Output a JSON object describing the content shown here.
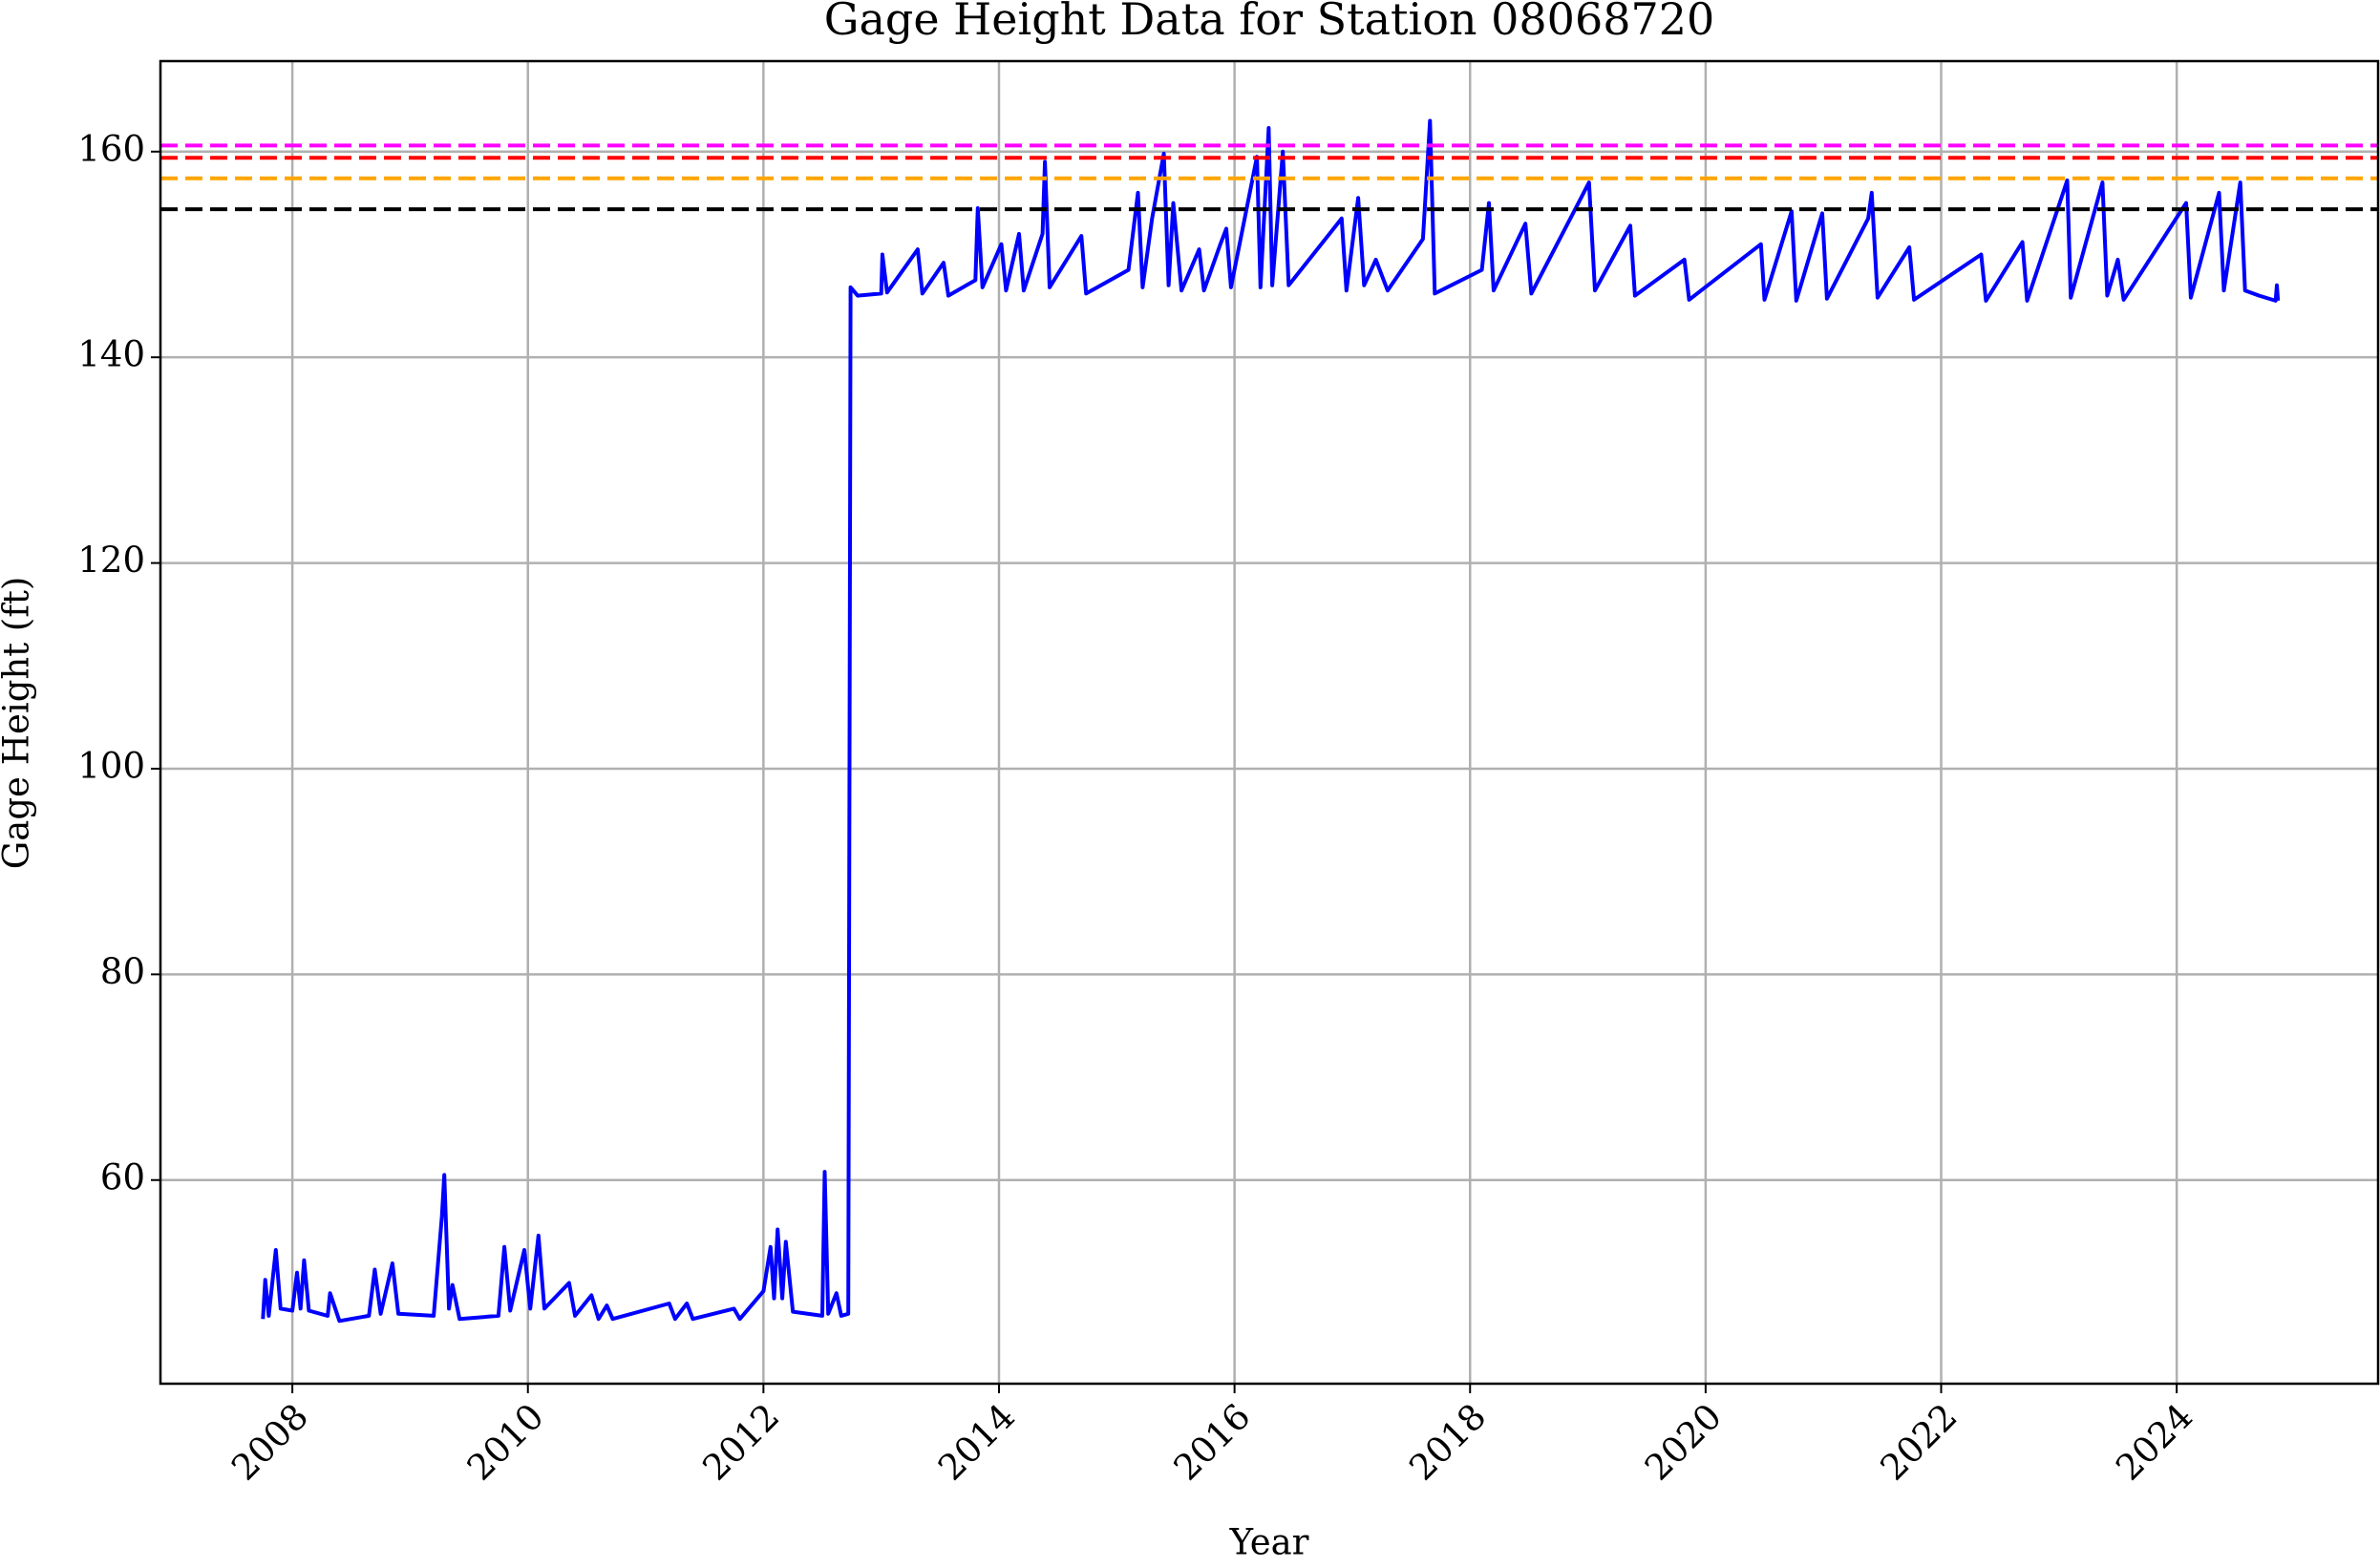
{
  "chart_data": {
    "type": "line",
    "title": "Gage Height Data for Station 08068720",
    "xlabel": "Year",
    "ylabel": "Gage Height (ft)",
    "x": [
      2007.75,
      2007.77,
      2007.8,
      2007.86,
      2007.9,
      2008.0,
      2008.04,
      2008.07,
      2008.1,
      2008.14,
      2008.3,
      2008.32,
      2008.4,
      2008.65,
      2008.7,
      2008.75,
      2008.85,
      2008.9,
      2009.2,
      2009.27,
      2009.29,
      2009.33,
      2009.36,
      2009.42,
      2009.75,
      2009.8,
      2009.85,
      2009.97,
      2010.02,
      2010.09,
      2010.14,
      2010.35,
      2010.4,
      2010.54,
      2010.6,
      2010.67,
      2010.72,
      2011.2,
      2011.25,
      2011.35,
      2011.4,
      2011.75,
      2011.8,
      2012.0,
      2012.06,
      2012.09,
      2012.12,
      2012.16,
      2012.19,
      2012.25,
      2012.5,
      2012.52,
      2012.55,
      2012.62,
      2012.66,
      2012.72,
      2012.74,
      2012.8,
      2013.0,
      2013.01,
      2013.05,
      2013.31,
      2013.35,
      2013.53,
      2013.57,
      2013.8,
      2013.82,
      2013.86,
      2014.02,
      2014.06,
      2014.17,
      2014.21,
      2014.37,
      2014.39,
      2014.43,
      2014.7,
      2014.74,
      2015.1,
      2015.18,
      2015.22,
      2015.3,
      2015.4,
      2015.44,
      2015.48,
      2015.55,
      2015.7,
      2015.74,
      2015.88,
      2015.93,
      2015.97,
      2016.19,
      2016.22,
      2016.29,
      2016.32,
      2016.41,
      2016.46,
      2016.91,
      2016.95,
      2017.05,
      2017.1,
      2017.2,
      2017.3,
      2017.6,
      2017.66,
      2017.7,
      2018.1,
      2018.16,
      2018.2,
      2018.47,
      2018.52,
      2018.92,
      2019.01,
      2019.06,
      2019.36,
      2019.4,
      2019.82,
      2019.86,
      2020.47,
      2020.5,
      2020.73,
      2020.77,
      2020.99,
      2021.03,
      2021.38,
      2021.41,
      2021.46,
      2021.73,
      2021.77,
      2022.34,
      2022.38,
      2022.69,
      2022.73,
      2023.07,
      2023.1,
      2023.37,
      2023.41,
      2023.5,
      2023.55,
      2024.08,
      2024.12,
      2024.36,
      2024.4,
      2024.54,
      2024.58,
      2024.7,
      2024.84,
      2024.85,
      2024.86
    ],
    "series": [
      {
        "color": "#0000ff",
        "values": [
          46.5,
          50.3,
          46.8,
          53.2,
          47.5,
          47.3,
          51.0,
          47.5,
          52.2,
          47.3,
          46.8,
          49.0,
          46.3,
          46.8,
          51.3,
          47.0,
          51.9,
          47.0,
          46.8,
          56.5,
          60.5,
          47.5,
          49.8,
          46.5,
          46.8,
          53.5,
          47.3,
          53.2,
          47.5,
          54.6,
          47.5,
          50.0,
          46.8,
          48.8,
          46.5,
          47.8,
          46.5,
          48.0,
          46.5,
          48.0,
          46.5,
          47.5,
          46.5,
          49.2,
          53.5,
          48.5,
          55.2,
          48.5,
          54.0,
          47.2,
          46.8,
          60.8,
          47.0,
          49.0,
          46.8,
          47.0,
          146.8,
          146.0,
          146.2,
          150.0,
          146.3,
          150.5,
          146.2,
          149.2,
          146.0,
          147.5,
          154.5,
          146.8,
          151.0,
          146.5,
          152.0,
          146.5,
          152.0,
          159.0,
          146.8,
          151.8,
          146.2,
          148.5,
          156.0,
          146.8,
          153.5,
          159.8,
          147.0,
          155.0,
          146.5,
          150.5,
          146.5,
          151.0,
          152.5,
          146.8,
          159.5,
          146.8,
          162.3,
          147.0,
          160.0,
          147.0,
          153.5,
          146.5,
          155.5,
          147.0,
          149.5,
          146.5,
          151.5,
          163.0,
          146.2,
          148.5,
          155.0,
          146.5,
          153.0,
          146.2,
          155.0,
          157.0,
          146.5,
          152.8,
          146.0,
          149.5,
          145.6,
          151.0,
          145.6,
          154.2,
          145.5,
          154.0,
          145.7,
          153.5,
          156.0,
          145.8,
          150.7,
          145.6,
          150.0,
          145.5,
          151.2,
          145.5,
          157.2,
          145.8,
          157.0,
          146.0,
          149.5,
          145.6,
          155.0,
          145.8,
          156.0,
          146.5,
          157.0,
          146.5,
          146.0,
          145.5,
          147.0,
          145.5
        ]
      }
    ],
    "hlines": [
      {
        "value": 160.6,
        "color": "#ff00ff"
      },
      {
        "value": 159.4,
        "color": "#ff0000"
      },
      {
        "value": 157.4,
        "color": "#ffa500"
      },
      {
        "value": 154.4,
        "color": "#000000"
      }
    ],
    "xlim": [
      2006.88,
      2025.71
    ],
    "xticks": [
      2008,
      2010,
      2012,
      2014,
      2016,
      2018,
      2020,
      2022,
      2024
    ],
    "ylim": [
      40.2,
      168.8
    ],
    "yticks": [
      60,
      80,
      100,
      120,
      140,
      160
    ],
    "grid": true
  }
}
